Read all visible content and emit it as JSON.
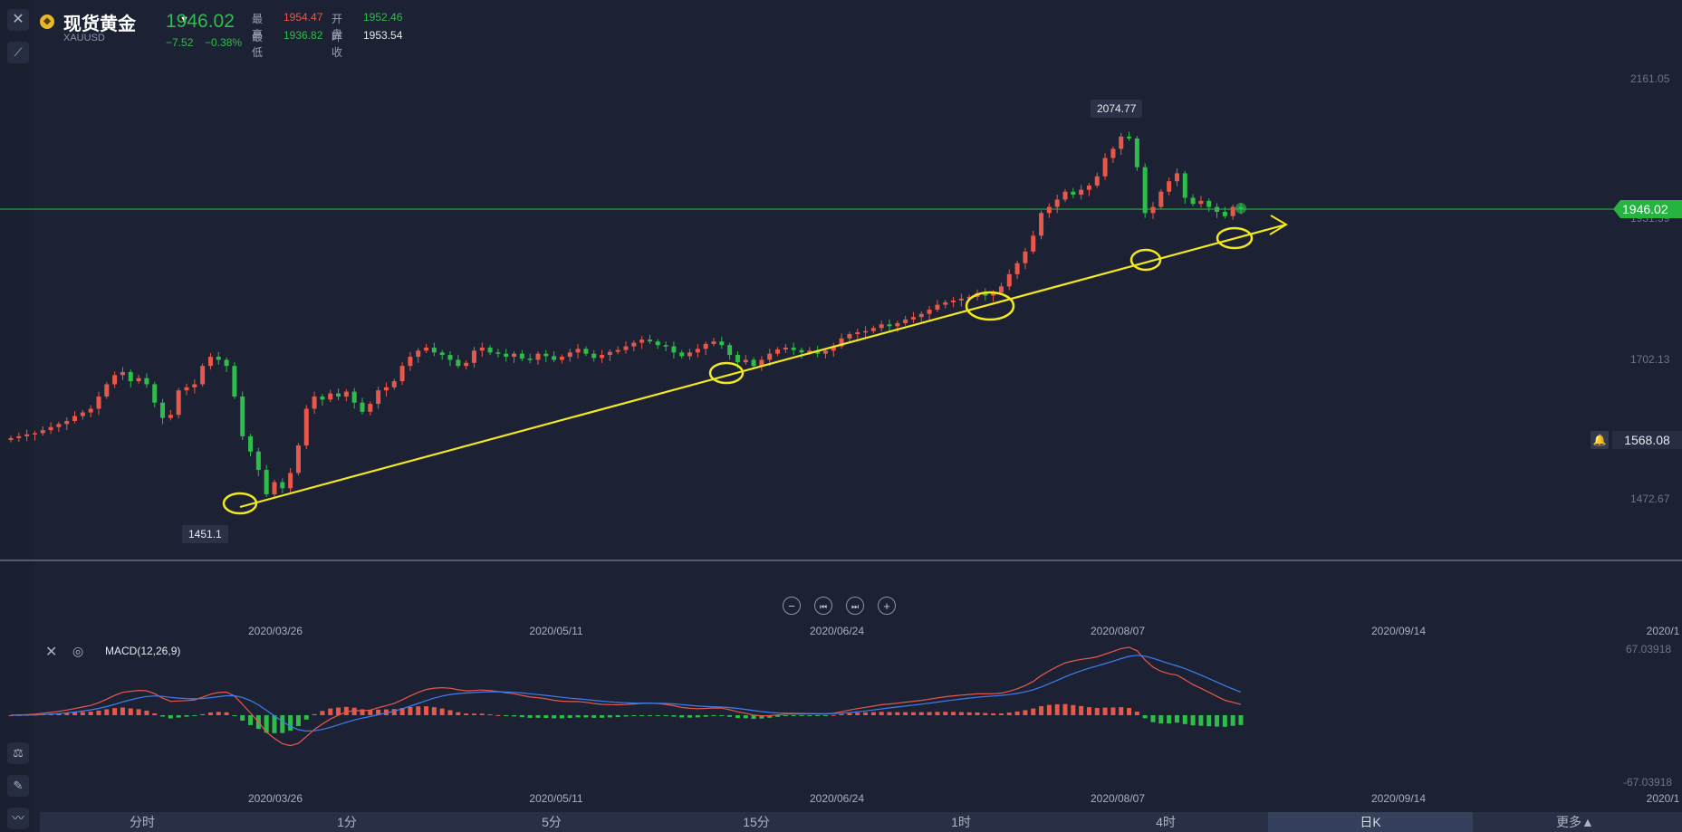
{
  "header": {
    "name": "现货黄金",
    "symbol": "XAUUSD",
    "price": "1946.02",
    "change": "−7.52",
    "change_pct": "−0.38%",
    "high_label": "最高",
    "high": "1954.47",
    "open_label": "开盘",
    "open": "1952.46",
    "low_label": "最低",
    "low": "1936.82",
    "prev_label": "昨收",
    "prev": "1953.54"
  },
  "price_axis": {
    "top": "2161.05",
    "mid_hidden": "1931.59",
    "mid": "1702.13",
    "low": "1472.67",
    "current": "1946.02",
    "alert": "1568.08"
  },
  "annotations": {
    "peak": "2074.77",
    "trough": "1451.1"
  },
  "dates": [
    "2020/03/26",
    "2020/05/11",
    "2020/06/24",
    "2020/08/07",
    "2020/09/14",
    "2020/1"
  ],
  "macd": {
    "label": "MACD(12,26,9)",
    "top": "67.03918",
    "bottom": "-67.03918"
  },
  "tabs": [
    "分时",
    "1分",
    "5分",
    "15分",
    "1时",
    "4时",
    "日K",
    "更多▲"
  ],
  "active_tab": "日K",
  "colors": {
    "up": "#e8584a",
    "down": "#2ebd4a",
    "background": "#1c2233",
    "trendline": "#f2e81f",
    "dif": "#e8584a",
    "dea": "#3d7ff0"
  },
  "chart_data": {
    "type": "candlestick",
    "title": "现货黄金",
    "x": "daily bars, 2020-03 to 2020-09",
    "ylim": [
      1451.1,
      2161.05
    ],
    "closes": [
      1572,
      1575,
      1578,
      1580,
      1585,
      1590,
      1595,
      1600,
      1608,
      1614,
      1620,
      1640,
      1660,
      1675,
      1680,
      1665,
      1670,
      1660,
      1630,
      1605,
      1610,
      1650,
      1655,
      1660,
      1690,
      1705,
      1700,
      1690,
      1640,
      1575,
      1550,
      1520,
      1480,
      1500,
      1490,
      1515,
      1560,
      1620,
      1640,
      1635,
      1645,
      1640,
      1648,
      1630,
      1615,
      1628,
      1650,
      1655,
      1665,
      1690,
      1705,
      1715,
      1720,
      1712,
      1708,
      1700,
      1690,
      1695,
      1715,
      1720,
      1712,
      1710,
      1705,
      1710,
      1702,
      1700,
      1710,
      1706,
      1700,
      1705,
      1712,
      1718,
      1710,
      1703,
      1708,
      1713,
      1716,
      1722,
      1728,
      1733,
      1730,
      1724,
      1722,
      1712,
      1706,
      1712,
      1718,
      1726,
      1730,
      1724,
      1708,
      1696,
      1700,
      1690,
      1700,
      1710,
      1717,
      1720,
      1716,
      1712,
      1715,
      1710,
      1715,
      1722,
      1735,
      1742,
      1745,
      1747,
      1752,
      1758,
      1755,
      1760,
      1766,
      1770,
      1775,
      1782,
      1790,
      1794,
      1797,
      1800,
      1803,
      1809,
      1805,
      1810,
      1820,
      1840,
      1858,
      1877,
      1903,
      1940,
      1950,
      1962,
      1975,
      1970,
      1978,
      1985,
      2000,
      2030,
      2045,
      2065,
      2062,
      2015,
      1940,
      1950,
      1975,
      1992,
      2005,
      1965,
      1955,
      1960,
      1950,
      1942,
      1935,
      1950,
      1946
    ],
    "macd_dif": "red curve",
    "macd_dea": "blue curve"
  }
}
